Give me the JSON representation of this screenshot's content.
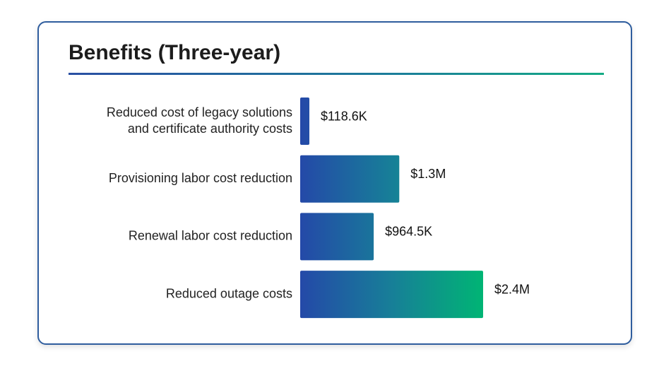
{
  "chart_data": {
    "type": "bar",
    "orientation": "horizontal",
    "title": "Benefits (Three-year)",
    "categories": [
      [
        "Reduced cost of legacy solutions",
        "and certificate authority costs"
      ],
      [
        "Provisioning labor cost reduction"
      ],
      [
        "Renewal labor cost reduction"
      ],
      [
        "Reduced outage costs"
      ]
    ],
    "values": [
      118.6,
      1300,
      964.5,
      2400
    ],
    "value_unit": "$K",
    "value_labels": [
      "$118.6K",
      "$1.3M",
      "$964.5K",
      "$2.4M"
    ],
    "grid": false,
    "colors": {
      "gradient_start": "#2449a8",
      "gradient_mid": "#177f98",
      "gradient_end": "#00b574",
      "title_rule_start": "#2a4fa3",
      "title_rule_end": "#13ab84",
      "border": "#2f5d9e"
    }
  }
}
